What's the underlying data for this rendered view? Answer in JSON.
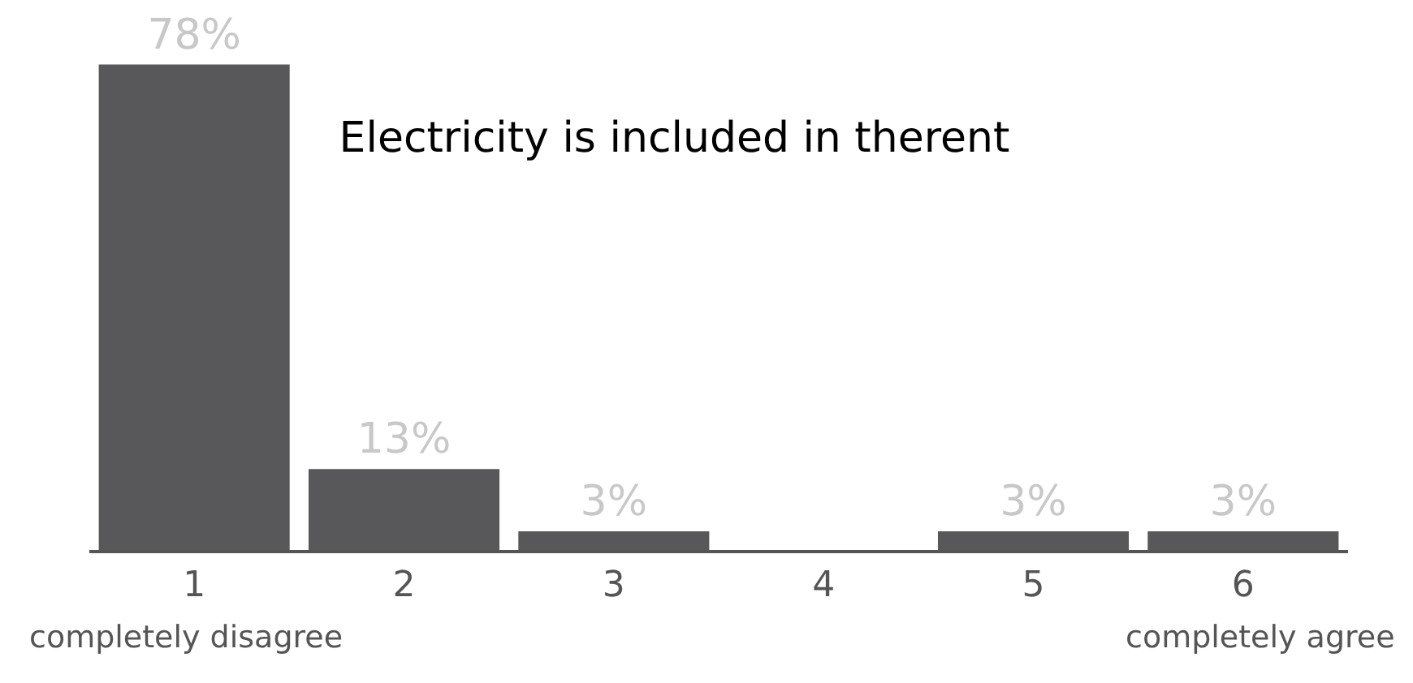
{
  "chart_data": {
    "type": "bar",
    "title": "Electricity is included in therent",
    "categories": [
      "1",
      "2",
      "3",
      "4",
      "5",
      "6"
    ],
    "values": [
      78,
      13,
      3,
      0,
      3,
      3
    ],
    "value_labels": [
      "78%",
      "13%",
      "3%",
      null,
      "3%",
      "3%"
    ],
    "color": "#58585a",
    "annotations": [
      "completely disagree",
      "completely agree"
    ]
  }
}
